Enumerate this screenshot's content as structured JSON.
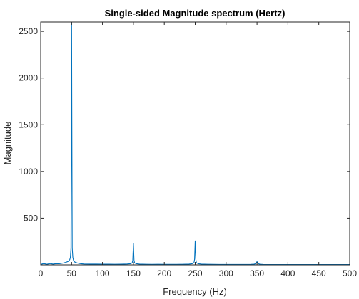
{
  "chart_data": {
    "type": "line",
    "title": "Single-sided Magnitude spectrum (Hertz)",
    "xlabel": "Frequency (Hz)",
    "ylabel": "Magnitude",
    "xlim": [
      0,
      500
    ],
    "ylim": [
      0,
      2600
    ],
    "xticks": [
      0,
      50,
      100,
      150,
      200,
      250,
      300,
      350,
      400,
      450,
      500
    ],
    "yticks": [
      500,
      1000,
      1500,
      2000,
      2500
    ],
    "grid": false,
    "line_color": "#0072BD",
    "series": [
      {
        "x": [
          0,
          5,
          10,
          15,
          20,
          25,
          30,
          35,
          40,
          45,
          47,
          48,
          49,
          50,
          51,
          52,
          53,
          55,
          60,
          65,
          70,
          80,
          90,
          100,
          110,
          120,
          130,
          140,
          145,
          148,
          149,
          150,
          151,
          152,
          155,
          160,
          170,
          180,
          190,
          200,
          210,
          220,
          230,
          240,
          245,
          248,
          249,
          250,
          251,
          252,
          255,
          260,
          270,
          280,
          290,
          300,
          310,
          320,
          330,
          340,
          345,
          348,
          349,
          350,
          351,
          352,
          355,
          360,
          380,
          400,
          420,
          440,
          460,
          480,
          500
        ],
        "y": [
          5,
          14,
          6,
          14,
          8,
          13,
          12,
          17,
          25,
          38,
          55,
          80,
          180,
          2600,
          180,
          80,
          50,
          30,
          18,
          12,
          9,
          8,
          8,
          7,
          7,
          6,
          7,
          9,
          12,
          20,
          50,
          230,
          50,
          20,
          12,
          8,
          6,
          5,
          6,
          5,
          5,
          5,
          6,
          8,
          12,
          22,
          60,
          260,
          60,
          22,
          12,
          8,
          6,
          5,
          4,
          4,
          4,
          4,
          4,
          5,
          7,
          12,
          22,
          35,
          22,
          12,
          6,
          4,
          3,
          3,
          3,
          3,
          3,
          3,
          3
        ]
      }
    ]
  }
}
